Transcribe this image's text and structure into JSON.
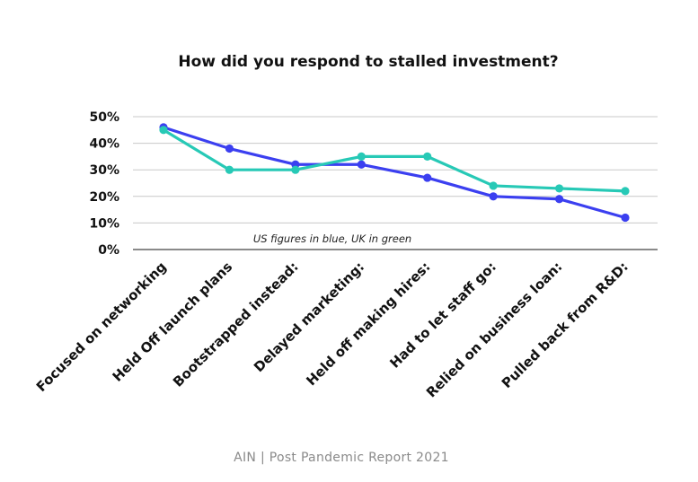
{
  "chart_data": {
    "type": "line",
    "title": "How did you respond to stalled investment?",
    "categories": [
      "Focused on networking",
      "Held Off launch plans",
      "Bootstrapped instead:",
      "Delayed marketing:",
      "Held off making hires:",
      "Had to let staff go:",
      "Relied on business loan:",
      "Pulled back from R&D:"
    ],
    "series": [
      {
        "color": "#3b3ff0",
        "values": [
          46,
          38,
          32,
          32,
          27,
          20,
          19,
          12
        ]
      },
      {
        "color": "#27c9b6",
        "values": [
          45,
          30,
          30,
          35,
          35,
          24,
          23,
          22
        ]
      }
    ],
    "ylim": [
      0,
      50
    ],
    "yticks": [
      0,
      10,
      20,
      30,
      40,
      50
    ],
    "ytick_labels": [
      "0%",
      "10%",
      "20%",
      "30%",
      "40%",
      "50%"
    ],
    "grid": true,
    "annotation": "US figures in blue, UK in green"
  },
  "footer": "AIN | Post Pandemic Report 2021"
}
